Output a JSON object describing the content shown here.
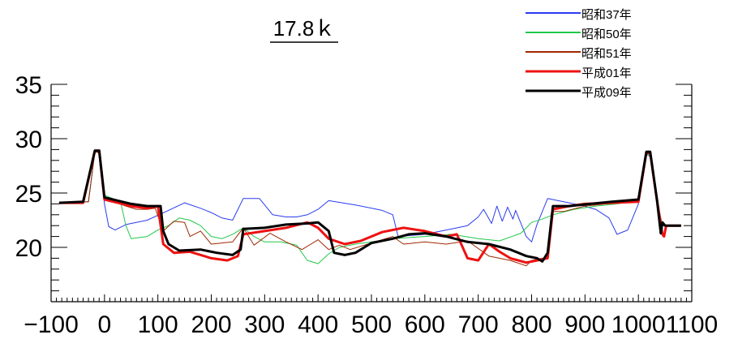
{
  "chart_data": {
    "type": "line",
    "title": "17.8ｋ",
    "xlabel": "",
    "ylabel": "",
    "xlim": [
      -100,
      1100
    ],
    "ylim": [
      15,
      35
    ],
    "x_ticks": [
      -100,
      0,
      100,
      200,
      300,
      400,
      500,
      600,
      700,
      800,
      900,
      1000,
      1100
    ],
    "y_ticks": [
      20,
      25,
      30,
      35
    ],
    "grid": false,
    "legend_position": "top-right",
    "series": [
      {
        "name": "昭和37年",
        "color": "#2a3cf0",
        "width": 1,
        "points": [
          [
            -85,
            24.1
          ],
          [
            -30,
            24.2
          ],
          [
            -18,
            28.8
          ],
          [
            -10,
            28.7
          ],
          [
            0,
            24.0
          ],
          [
            8,
            21.9
          ],
          [
            20,
            21.6
          ],
          [
            40,
            22.1
          ],
          [
            80,
            22.5
          ],
          [
            120,
            23.4
          ],
          [
            150,
            24.1
          ],
          [
            180,
            23.6
          ],
          [
            200,
            23.2
          ],
          [
            220,
            22.7
          ],
          [
            240,
            22.5
          ],
          [
            260,
            24.5
          ],
          [
            290,
            24.5
          ],
          [
            315,
            23.0
          ],
          [
            340,
            22.8
          ],
          [
            360,
            22.8
          ],
          [
            380,
            23.0
          ],
          [
            400,
            23.5
          ],
          [
            420,
            24.3
          ],
          [
            470,
            23.9
          ],
          [
            520,
            23.4
          ],
          [
            540,
            23.0
          ],
          [
            550,
            21.0
          ],
          [
            600,
            21.2
          ],
          [
            640,
            21.6
          ],
          [
            680,
            22.0
          ],
          [
            700,
            22.8
          ],
          [
            710,
            23.5
          ],
          [
            725,
            22.2
          ],
          [
            735,
            23.8
          ],
          [
            745,
            22.4
          ],
          [
            755,
            23.7
          ],
          [
            765,
            22.6
          ],
          [
            770,
            23.4
          ],
          [
            790,
            21.0
          ],
          [
            800,
            20.5
          ],
          [
            810,
            22.1
          ],
          [
            830,
            24.5
          ],
          [
            860,
            24.2
          ],
          [
            890,
            23.9
          ],
          [
            920,
            23.5
          ],
          [
            945,
            22.7
          ],
          [
            960,
            21.2
          ],
          [
            980,
            21.6
          ],
          [
            1000,
            24.0
          ],
          [
            1015,
            28.7
          ],
          [
            1022,
            28.3
          ],
          [
            1035,
            24.2
          ],
          [
            1045,
            22.0
          ],
          [
            1060,
            22.0
          ],
          [
            1080,
            22.0
          ]
        ]
      },
      {
        "name": "昭和50年",
        "color": "#22c84a",
        "width": 1,
        "points": [
          [
            -85,
            24.1
          ],
          [
            -30,
            24.2
          ],
          [
            -18,
            28.8
          ],
          [
            -10,
            28.7
          ],
          [
            0,
            24.8
          ],
          [
            30,
            24.2
          ],
          [
            40,
            22.0
          ],
          [
            50,
            20.8
          ],
          [
            80,
            21.0
          ],
          [
            100,
            21.6
          ],
          [
            120,
            22.0
          ],
          [
            140,
            22.7
          ],
          [
            160,
            22.5
          ],
          [
            180,
            22.0
          ],
          [
            200,
            21.0
          ],
          [
            220,
            20.8
          ],
          [
            240,
            21.2
          ],
          [
            260,
            21.8
          ],
          [
            280,
            21.0
          ],
          [
            300,
            20.5
          ],
          [
            330,
            20.5
          ],
          [
            360,
            20.2
          ],
          [
            380,
            18.8
          ],
          [
            400,
            18.5
          ],
          [
            420,
            19.4
          ],
          [
            440,
            20.0
          ],
          [
            470,
            20.3
          ],
          [
            500,
            20.5
          ],
          [
            540,
            20.8
          ],
          [
            600,
            21.0
          ],
          [
            650,
            21.2
          ],
          [
            700,
            20.8
          ],
          [
            740,
            20.6
          ],
          [
            780,
            21.3
          ],
          [
            800,
            22.3
          ],
          [
            820,
            22.6
          ],
          [
            840,
            23.0
          ],
          [
            880,
            23.5
          ],
          [
            920,
            23.8
          ],
          [
            960,
            24.0
          ],
          [
            1000,
            24.3
          ],
          [
            1015,
            28.5
          ],
          [
            1022,
            28.5
          ],
          [
            1035,
            24.2
          ],
          [
            1045,
            22.0
          ],
          [
            1080,
            22.0
          ]
        ]
      },
      {
        "name": "昭和51年",
        "color": "#a02800",
        "width": 1,
        "points": [
          [
            -85,
            24.1
          ],
          [
            -30,
            24.2
          ],
          [
            -18,
            28.8
          ],
          [
            -10,
            28.7
          ],
          [
            0,
            24.5
          ],
          [
            40,
            23.8
          ],
          [
            60,
            23.5
          ],
          [
            80,
            23.5
          ],
          [
            95,
            23.6
          ],
          [
            110,
            21.5
          ],
          [
            130,
            22.4
          ],
          [
            150,
            22.3
          ],
          [
            160,
            21.0
          ],
          [
            180,
            21.5
          ],
          [
            200,
            20.3
          ],
          [
            240,
            20.5
          ],
          [
            260,
            21.8
          ],
          [
            280,
            20.2
          ],
          [
            310,
            21.3
          ],
          [
            340,
            20.5
          ],
          [
            370,
            19.8
          ],
          [
            400,
            20.7
          ],
          [
            420,
            19.8
          ],
          [
            440,
            20.2
          ],
          [
            460,
            19.8
          ],
          [
            500,
            20.4
          ],
          [
            540,
            21.0
          ],
          [
            560,
            20.3
          ],
          [
            600,
            20.5
          ],
          [
            640,
            20.3
          ],
          [
            680,
            20.6
          ],
          [
            720,
            19.2
          ],
          [
            760,
            18.8
          ],
          [
            790,
            18.3
          ],
          [
            800,
            18.8
          ],
          [
            820,
            19.0
          ],
          [
            830,
            19.0
          ],
          [
            840,
            23.3
          ],
          [
            860,
            23.3
          ],
          [
            900,
            23.8
          ],
          [
            940,
            24.0
          ],
          [
            980,
            24.2
          ],
          [
            1000,
            24.2
          ],
          [
            1015,
            28.6
          ],
          [
            1022,
            28.6
          ],
          [
            1035,
            24.2
          ],
          [
            1045,
            22.0
          ],
          [
            1080,
            22.0
          ]
        ]
      },
      {
        "name": "平成01年",
        "color": "#ee1111",
        "width": 3,
        "points": [
          [
            -85,
            24.1
          ],
          [
            -40,
            24.1
          ],
          [
            -18,
            28.9
          ],
          [
            -10,
            28.9
          ],
          [
            0,
            24.4
          ],
          [
            50,
            23.8
          ],
          [
            80,
            23.6
          ],
          [
            100,
            23.8
          ],
          [
            110,
            20.3
          ],
          [
            130,
            19.5
          ],
          [
            160,
            19.6
          ],
          [
            200,
            19.0
          ],
          [
            230,
            18.8
          ],
          [
            250,
            19.2
          ],
          [
            260,
            21.2
          ],
          [
            300,
            21.5
          ],
          [
            340,
            21.8
          ],
          [
            380,
            22.3
          ],
          [
            400,
            21.8
          ],
          [
            420,
            20.8
          ],
          [
            450,
            20.3
          ],
          [
            480,
            20.6
          ],
          [
            520,
            21.4
          ],
          [
            560,
            21.8
          ],
          [
            600,
            21.5
          ],
          [
            640,
            21.0
          ],
          [
            660,
            21.2
          ],
          [
            680,
            19.0
          ],
          [
            700,
            18.8
          ],
          [
            720,
            20.3
          ],
          [
            740,
            19.6
          ],
          [
            760,
            19.0
          ],
          [
            790,
            18.6
          ],
          [
            810,
            18.8
          ],
          [
            830,
            19.0
          ],
          [
            840,
            23.5
          ],
          [
            870,
            23.8
          ],
          [
            900,
            24.0
          ],
          [
            950,
            24.1
          ],
          [
            1000,
            24.2
          ],
          [
            1015,
            28.7
          ],
          [
            1022,
            28.7
          ],
          [
            1035,
            24.3
          ],
          [
            1045,
            21.2
          ],
          [
            1048,
            21.0
          ],
          [
            1052,
            22.0
          ],
          [
            1080,
            22.0
          ]
        ]
      },
      {
        "name": "平成09年",
        "color": "#000000",
        "width": 3,
        "points": [
          [
            -85,
            24.1
          ],
          [
            -40,
            24.2
          ],
          [
            -18,
            28.9
          ],
          [
            -10,
            28.9
          ],
          [
            0,
            24.6
          ],
          [
            50,
            24.0
          ],
          [
            80,
            23.8
          ],
          [
            105,
            23.8
          ],
          [
            110,
            21.5
          ],
          [
            120,
            20.3
          ],
          [
            140,
            19.7
          ],
          [
            180,
            19.8
          ],
          [
            210,
            19.5
          ],
          [
            240,
            19.3
          ],
          [
            255,
            19.8
          ],
          [
            260,
            21.7
          ],
          [
            300,
            21.8
          ],
          [
            340,
            22.1
          ],
          [
            380,
            22.2
          ],
          [
            400,
            22.3
          ],
          [
            420,
            21.5
          ],
          [
            430,
            19.5
          ],
          [
            450,
            19.3
          ],
          [
            470,
            19.5
          ],
          [
            500,
            20.4
          ],
          [
            540,
            20.8
          ],
          [
            570,
            21.2
          ],
          [
            600,
            21.3
          ],
          [
            640,
            21.0
          ],
          [
            680,
            20.5
          ],
          [
            720,
            20.3
          ],
          [
            760,
            19.8
          ],
          [
            790,
            19.2
          ],
          [
            810,
            19.0
          ],
          [
            820,
            18.7
          ],
          [
            830,
            19.5
          ],
          [
            840,
            23.8
          ],
          [
            870,
            23.8
          ],
          [
            910,
            24.0
          ],
          [
            950,
            24.2
          ],
          [
            1000,
            24.4
          ],
          [
            1015,
            28.8
          ],
          [
            1022,
            28.8
          ],
          [
            1035,
            24.3
          ],
          [
            1042,
            21.3
          ],
          [
            1045,
            22.3
          ],
          [
            1050,
            22.0
          ],
          [
            1080,
            22.0
          ]
        ]
      }
    ]
  }
}
